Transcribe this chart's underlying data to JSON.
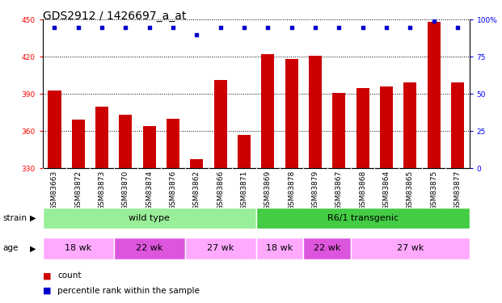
{
  "title": "GDS2912 / 1426697_a_at",
  "samples": [
    "GSM83663",
    "GSM83872",
    "GSM83873",
    "GSM83870",
    "GSM83874",
    "GSM83876",
    "GSM83862",
    "GSM83866",
    "GSM83871",
    "GSM83869",
    "GSM83878",
    "GSM83879",
    "GSM83867",
    "GSM83868",
    "GSM83864",
    "GSM83865",
    "GSM83875",
    "GSM83877"
  ],
  "counts": [
    393,
    369,
    380,
    373,
    364,
    370,
    337,
    401,
    357,
    422,
    418,
    421,
    391,
    395,
    396,
    399,
    448,
    399
  ],
  "percentile": [
    95,
    95,
    95,
    95,
    95,
    95,
    90,
    95,
    95,
    95,
    95,
    95,
    95,
    95,
    95,
    95,
    99,
    95
  ],
  "bar_color": "#cc0000",
  "dot_color": "#0000cc",
  "ylim_left": [
    330,
    450
  ],
  "yticks_left": [
    330,
    360,
    390,
    420,
    450
  ],
  "ylim_right": [
    0,
    100
  ],
  "yticks_right": [
    0,
    25,
    50,
    75,
    100
  ],
  "strain_groups": [
    {
      "label": "wild type",
      "start": 0,
      "end": 9,
      "color": "#99ee99"
    },
    {
      "label": "R6/1 transgenic",
      "start": 9,
      "end": 18,
      "color": "#44cc44"
    }
  ],
  "age_groups": [
    {
      "label": "18 wk",
      "start": 0,
      "end": 3,
      "color": "#ffaaff"
    },
    {
      "label": "22 wk",
      "start": 3,
      "end": 6,
      "color": "#dd55dd"
    },
    {
      "label": "27 wk",
      "start": 6,
      "end": 9,
      "color": "#ffaaff"
    },
    {
      "label": "18 wk",
      "start": 9,
      "end": 11,
      "color": "#ffaaff"
    },
    {
      "label": "22 wk",
      "start": 11,
      "end": 13,
      "color": "#dd55dd"
    },
    {
      "label": "27 wk",
      "start": 13,
      "end": 18,
      "color": "#ffaaff"
    }
  ],
  "legend_count_color": "#cc0000",
  "legend_dot_color": "#0000cc",
  "background_color": "#ffffff",
  "chart_bg_color": "#ffffff",
  "xtick_bg_color": "#cccccc",
  "title_fontsize": 10,
  "tick_fontsize": 6.5,
  "bar_width": 0.55
}
